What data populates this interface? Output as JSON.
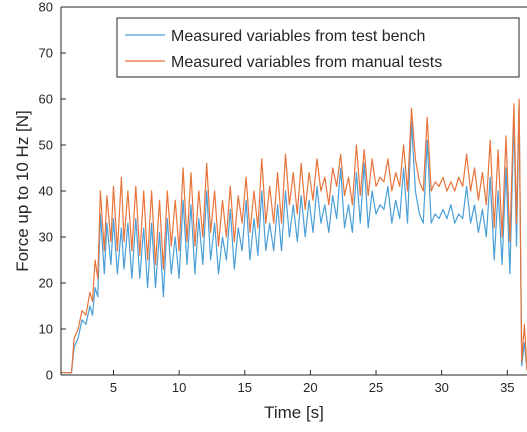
{
  "chart_data": {
    "type": "line",
    "title": "",
    "xlabel": "Time [s]",
    "ylabel": "Force up to 10 Hz [N]",
    "xlim": [
      1,
      36.5
    ],
    "ylim": [
      0,
      80
    ],
    "xticks": [
      5,
      10,
      15,
      20,
      25,
      30,
      35
    ],
    "yticks": [
      0,
      10,
      20,
      30,
      40,
      50,
      60,
      70,
      80
    ],
    "grid": false,
    "legend_position": "top-right",
    "series": [
      {
        "name": "Measured variables from test bench",
        "color": "#4a9fd8",
        "x": [
          1.0,
          1.8,
          2.0,
          2.3,
          2.6,
          2.9,
          3.2,
          3.4,
          3.6,
          3.8,
          4.0,
          4.3,
          4.5,
          4.8,
          5.0,
          5.3,
          5.6,
          5.8,
          6.1,
          6.4,
          6.7,
          7.0,
          7.3,
          7.6,
          7.9,
          8.2,
          8.5,
          8.8,
          9.1,
          9.4,
          9.7,
          10.0,
          10.3,
          10.6,
          10.9,
          11.2,
          11.5,
          11.8,
          12.1,
          12.4,
          12.7,
          13.0,
          13.3,
          13.6,
          13.9,
          14.2,
          14.5,
          14.8,
          15.1,
          15.4,
          15.7,
          16.0,
          16.3,
          16.6,
          16.9,
          17.2,
          17.5,
          17.8,
          18.1,
          18.4,
          18.7,
          19.0,
          19.3,
          19.6,
          19.9,
          20.2,
          20.5,
          20.8,
          21.1,
          21.4,
          21.7,
          22.0,
          22.3,
          22.6,
          22.9,
          23.2,
          23.5,
          23.8,
          24.1,
          24.4,
          24.7,
          25.0,
          25.3,
          25.6,
          25.9,
          26.2,
          26.5,
          26.8,
          27.1,
          27.4,
          27.7,
          28.0,
          28.3,
          28.6,
          28.9,
          29.2,
          29.5,
          29.8,
          30.1,
          30.4,
          30.7,
          31.0,
          31.3,
          31.6,
          31.9,
          32.2,
          32.5,
          32.8,
          33.1,
          33.4,
          33.7,
          34.0,
          34.3,
          34.6,
          34.9,
          35.2,
          35.5,
          35.7,
          35.9,
          36.1,
          36.3,
          36.5
        ],
        "y": [
          0.5,
          0.5,
          6,
          8,
          12,
          11,
          15,
          13,
          19,
          17,
          35,
          22,
          33,
          24,
          34,
          22,
          32,
          23,
          33,
          21,
          34,
          21,
          32,
          19,
          33,
          19,
          31,
          17,
          34,
          22,
          30,
          21,
          38,
          24,
          37,
          22,
          34,
          24,
          40,
          25,
          33,
          22,
          30,
          25,
          36,
          23,
          32,
          27,
          38,
          25,
          34,
          26,
          40,
          27,
          33,
          27,
          37,
          27,
          40,
          30,
          37,
          29,
          39,
          30,
          38,
          31,
          41,
          33,
          37,
          31,
          39,
          34,
          45,
          32,
          37,
          31,
          44,
          33,
          46,
          32,
          40,
          35,
          37,
          36,
          41,
          33,
          38,
          34,
          45,
          33,
          55,
          40,
          35,
          33,
          51,
          33,
          35,
          34,
          36,
          34,
          37,
          33,
          35,
          34,
          41,
          33,
          37,
          31,
          36,
          30,
          43,
          25,
          40,
          24,
          45,
          22,
          56,
          28,
          59,
          2,
          7,
          1
        ]
      },
      {
        "name": "Measured variables from manual tests",
        "color": "#e8743b",
        "x": [
          1.0,
          1.8,
          2.0,
          2.3,
          2.6,
          2.9,
          3.2,
          3.4,
          3.6,
          3.8,
          4.0,
          4.3,
          4.5,
          4.8,
          5.0,
          5.3,
          5.6,
          5.8,
          6.1,
          6.4,
          6.7,
          7.0,
          7.3,
          7.6,
          7.9,
          8.2,
          8.5,
          8.8,
          9.1,
          9.4,
          9.7,
          10.0,
          10.3,
          10.6,
          10.9,
          11.2,
          11.5,
          11.8,
          12.1,
          12.4,
          12.7,
          13.0,
          13.3,
          13.6,
          13.9,
          14.2,
          14.5,
          14.8,
          15.1,
          15.4,
          15.7,
          16.0,
          16.3,
          16.6,
          16.9,
          17.2,
          17.5,
          17.8,
          18.1,
          18.4,
          18.7,
          19.0,
          19.3,
          19.6,
          19.9,
          20.2,
          20.5,
          20.8,
          21.1,
          21.4,
          21.7,
          22.0,
          22.3,
          22.6,
          22.9,
          23.2,
          23.5,
          23.8,
          24.1,
          24.4,
          24.7,
          25.0,
          25.3,
          25.6,
          25.9,
          26.2,
          26.5,
          26.8,
          27.1,
          27.4,
          27.7,
          28.0,
          28.3,
          28.6,
          28.9,
          29.2,
          29.5,
          29.8,
          30.1,
          30.4,
          30.7,
          31.0,
          31.3,
          31.6,
          31.9,
          32.2,
          32.5,
          32.8,
          33.1,
          33.4,
          33.7,
          34.0,
          34.3,
          34.6,
          34.9,
          35.2,
          35.5,
          35.7,
          35.9,
          36.1,
          36.3,
          36.5
        ],
        "y": [
          0.5,
          0.5,
          8,
          10,
          14,
          13,
          18,
          16,
          25,
          21,
          40,
          27,
          39,
          29,
          41,
          27,
          43,
          29,
          40,
          27,
          41,
          26,
          40,
          25,
          40,
          24,
          38,
          23,
          40,
          28,
          38,
          27,
          45,
          29,
          44,
          28,
          40,
          30,
          46,
          31,
          40,
          28,
          38,
          30,
          41,
          29,
          39,
          33,
          43,
          31,
          40,
          32,
          47,
          33,
          41,
          33,
          44,
          33,
          48,
          37,
          44,
          35,
          46,
          36,
          44,
          38,
          47,
          40,
          43,
          37,
          45,
          41,
          48,
          39,
          43,
          37,
          50,
          39,
          49,
          39,
          47,
          41,
          43,
          42,
          47,
          40,
          44,
          41,
          50,
          40,
          58,
          47,
          42,
          40,
          56,
          40,
          42,
          41,
          43,
          40,
          42,
          40,
          43,
          41,
          48,
          40,
          45,
          38,
          44,
          37,
          51,
          32,
          49,
          30,
          52,
          29,
          59,
          33,
          60,
          3,
          11,
          1
        ]
      }
    ]
  }
}
